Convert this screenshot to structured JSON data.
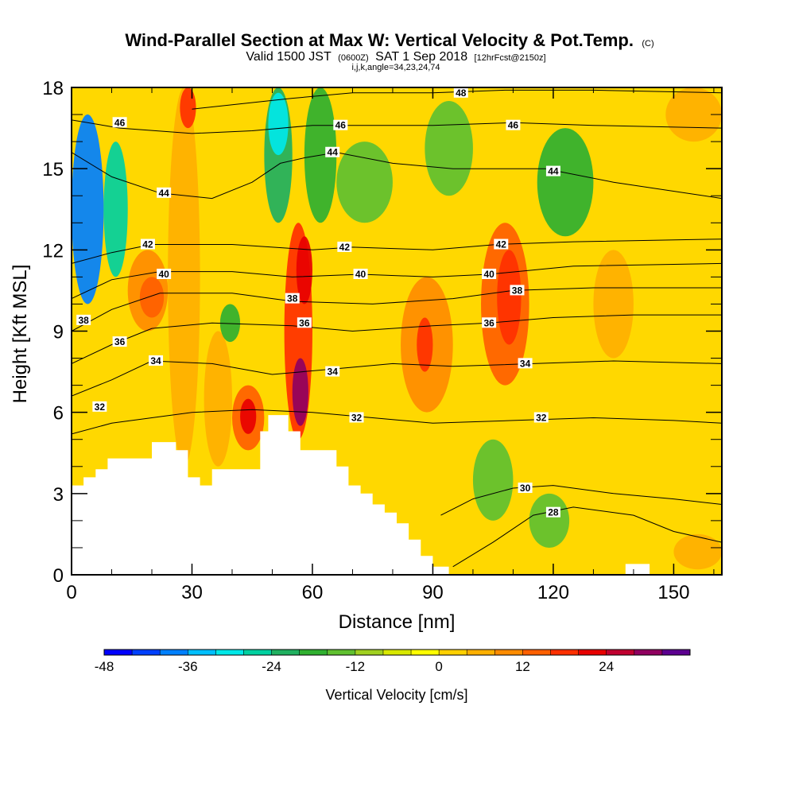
{
  "chart_data": {
    "type": "heatmap",
    "title": "Wind-Parallel Section at Max W: Vertical Velocity & Pot.Temp.",
    "title_suffix": "(C)",
    "subtitle_valid": "Valid 1500 JST",
    "subtitle_utc": "(0600Z)",
    "subtitle_date": "SAT 1 Sep 2018",
    "subtitle_fcst": "[12hrFcst@2150z]",
    "subtitle_indices": "i,j,k,angle=34,23,24,74",
    "xlabel": "Distance [nm]",
    "ylabel": "Height [Kft MSL]",
    "xlim": [
      0,
      162
    ],
    "ylim": [
      0,
      18
    ],
    "x_ticks": [
      0,
      30,
      60,
      90,
      120,
      150
    ],
    "x_tick_labels": [
      "0",
      "30",
      "60",
      "90",
      "120",
      "150"
    ],
    "y_ticks": [
      0,
      3,
      6,
      9,
      12,
      15,
      18
    ],
    "y_tick_labels": [
      "0",
      "3",
      "6",
      "9",
      "12",
      "15",
      "18"
    ],
    "colorbar": {
      "title": "Vertical Velocity [cm/s]",
      "min": -48,
      "step": 4,
      "colors": [
        "#0000ff",
        "#0040ff",
        "#0080ff",
        "#00bfff",
        "#00e8e8",
        "#00d0a0",
        "#20b060",
        "#30b030",
        "#60c030",
        "#a0d020",
        "#d8e800",
        "#ffff00",
        "#ffd000",
        "#ffb000",
        "#ff8c00",
        "#ff6000",
        "#ff3000",
        "#e80000",
        "#c00030",
        "#900060",
        "#5c0090"
      ],
      "tick_values": [
        -48,
        -36,
        -24,
        -12,
        0,
        12,
        24
      ],
      "tick_labels": [
        "-48",
        "-36",
        "-24",
        "-12",
        "0",
        "12",
        "24"
      ]
    },
    "vertical_velocity_cells": [
      {
        "x": [
          0,
          8
        ],
        "y": [
          10,
          17
        ],
        "v": -38
      },
      {
        "x": [
          8,
          14
        ],
        "y": [
          11,
          16
        ],
        "v": -26
      },
      {
        "x": [
          14,
          24
        ],
        "y": [
          9,
          12
        ],
        "v": 8
      },
      {
        "x": [
          17,
          23
        ],
        "y": [
          9.5,
          11
        ],
        "v": 14
      },
      {
        "x": [
          24,
          32
        ],
        "y": [
          4,
          18
        ],
        "v": 6
      },
      {
        "x": [
          27,
          31
        ],
        "y": [
          16.5,
          18
        ],
        "v": 16
      },
      {
        "x": [
          33,
          40
        ],
        "y": [
          4,
          9
        ],
        "v": 4
      },
      {
        "x": [
          37,
          42
        ],
        "y": [
          8.6,
          10
        ],
        "v": -20
      },
      {
        "x": [
          40,
          48
        ],
        "y": [
          4.6,
          7
        ],
        "v": 14
      },
      {
        "x": [
          42,
          46
        ],
        "y": [
          5.2,
          6.5
        ],
        "v": 20
      },
      {
        "x": [
          48,
          55
        ],
        "y": [
          13,
          18
        ],
        "v": -24
      },
      {
        "x": [
          49,
          54
        ],
        "y": [
          15.5,
          17.8
        ],
        "v": -30
      },
      {
        "x": [
          53,
          60
        ],
        "y": [
          5,
          13
        ],
        "v": 16
      },
      {
        "x": [
          55,
          59
        ],
        "y": [
          5.5,
          8
        ],
        "v": 28
      },
      {
        "x": [
          56,
          60
        ],
        "y": [
          10,
          12.5
        ],
        "v": 20
      },
      {
        "x": [
          58,
          66
        ],
        "y": [
          13,
          18
        ],
        "v": -20
      },
      {
        "x": [
          66,
          80
        ],
        "y": [
          13,
          16
        ],
        "v": -14
      },
      {
        "x": [
          82,
          95
        ],
        "y": [
          6,
          11
        ],
        "v": 10
      },
      {
        "x": [
          86,
          90
        ],
        "y": [
          7.5,
          9.5
        ],
        "v": 16
      },
      {
        "x": [
          88,
          100
        ],
        "y": [
          14,
          17.5
        ],
        "v": -14
      },
      {
        "x": [
          100,
          110
        ],
        "y": [
          2,
          5
        ],
        "v": -14
      },
      {
        "x": [
          102,
          114
        ],
        "y": [
          7,
          13
        ],
        "v": 12
      },
      {
        "x": [
          106,
          112
        ],
        "y": [
          8.5,
          12
        ],
        "v": 18
      },
      {
        "x": [
          114,
          124
        ],
        "y": [
          1,
          3
        ],
        "v": -14
      },
      {
        "x": [
          116,
          130
        ],
        "y": [
          12.5,
          16.5
        ],
        "v": -20
      },
      {
        "x": [
          130,
          140
        ],
        "y": [
          8,
          12
        ],
        "v": 6
      },
      {
        "x": [
          148,
          162
        ],
        "y": [
          16,
          18
        ],
        "v": 6
      },
      {
        "x": [
          150,
          162
        ],
        "y": [
          0.2,
          1.5
        ],
        "v": 6
      }
    ],
    "potential_temperature_contours": [
      {
        "value": 28,
        "label": "28",
        "points": [
          [
            95,
            0.3
          ],
          [
            105,
            1.2
          ],
          [
            115,
            2.2
          ],
          [
            125,
            2.5
          ],
          [
            140,
            2.2
          ],
          [
            150,
            1.6
          ],
          [
            162,
            1.2
          ]
        ]
      },
      {
        "value": 30,
        "label": "30",
        "points": [
          [
            92,
            2.2
          ],
          [
            100,
            2.8
          ],
          [
            110,
            3.2
          ],
          [
            120,
            3.3
          ],
          [
            135,
            3.0
          ],
          [
            150,
            2.8
          ],
          [
            162,
            2.6
          ]
        ]
      },
      {
        "value": 32,
        "label": "32",
        "points": [
          [
            0,
            5.2
          ],
          [
            10,
            5.6
          ],
          [
            20,
            5.8
          ],
          [
            30,
            6.0
          ],
          [
            45,
            6.1
          ],
          [
            60,
            6.0
          ],
          [
            75,
            5.8
          ],
          [
            90,
            5.6
          ],
          [
            110,
            5.7
          ],
          [
            130,
            5.8
          ],
          [
            150,
            5.7
          ],
          [
            162,
            5.6
          ]
        ]
      },
      {
        "value": 34,
        "label": "34",
        "points": [
          [
            0,
            6.6
          ],
          [
            10,
            7.2
          ],
          [
            20,
            7.9
          ],
          [
            35,
            7.8
          ],
          [
            50,
            7.4
          ],
          [
            65,
            7.6
          ],
          [
            80,
            7.8
          ],
          [
            95,
            7.7
          ],
          [
            115,
            7.8
          ],
          [
            135,
            7.9
          ],
          [
            162,
            7.8
          ]
        ]
      },
      {
        "value": 36,
        "label": "36",
        "points": [
          [
            0,
            7.8
          ],
          [
            10,
            8.5
          ],
          [
            20,
            9.1
          ],
          [
            35,
            9.3
          ],
          [
            55,
            9.2
          ],
          [
            70,
            9.0
          ],
          [
            90,
            9.2
          ],
          [
            104,
            9.3
          ],
          [
            120,
            9.5
          ],
          [
            140,
            9.6
          ],
          [
            162,
            9.6
          ]
        ]
      },
      {
        "value": 38,
        "label": "38",
        "points": [
          [
            0,
            9.0
          ],
          [
            10,
            9.8
          ],
          [
            22,
            10.4
          ],
          [
            40,
            10.4
          ],
          [
            55,
            10.1
          ],
          [
            75,
            10.0
          ],
          [
            95,
            10.2
          ],
          [
            110,
            10.5
          ],
          [
            130,
            10.6
          ],
          [
            162,
            10.6
          ]
        ]
      },
      {
        "value": 40,
        "label": "40",
        "points": [
          [
            0,
            10.2
          ],
          [
            10,
            10.9
          ],
          [
            22,
            11.2
          ],
          [
            40,
            11.2
          ],
          [
            55,
            11.0
          ],
          [
            72,
            11.1
          ],
          [
            90,
            11.0
          ],
          [
            104,
            11.1
          ],
          [
            125,
            11.4
          ],
          [
            162,
            11.5
          ]
        ]
      },
      {
        "value": 42,
        "label": "42",
        "points": [
          [
            0,
            11.5
          ],
          [
            10,
            11.9
          ],
          [
            20,
            12.2
          ],
          [
            40,
            12.2
          ],
          [
            60,
            12.0
          ],
          [
            70,
            12.1
          ],
          [
            90,
            12.0
          ],
          [
            106,
            12.2
          ],
          [
            125,
            12.3
          ],
          [
            162,
            12.4
          ]
        ]
      },
      {
        "value": 44,
        "label": "44",
        "points": [
          [
            0,
            15.6
          ],
          [
            10,
            14.7
          ],
          [
            22,
            14.1
          ],
          [
            35,
            13.9
          ],
          [
            45,
            14.5
          ],
          [
            52,
            15.2
          ],
          [
            58,
            15.4
          ],
          [
            66,
            15.6
          ],
          [
            80,
            15.2
          ],
          [
            95,
            15.0
          ],
          [
            118,
            15.0
          ],
          [
            135,
            14.5
          ],
          [
            162,
            13.9
          ]
        ]
      },
      {
        "value": 46,
        "label": "46",
        "points": [
          [
            0,
            16.8
          ],
          [
            12,
            16.5
          ],
          [
            30,
            16.3
          ],
          [
            45,
            16.4
          ],
          [
            60,
            16.6
          ],
          [
            70,
            16.6
          ],
          [
            90,
            16.6
          ],
          [
            110,
            16.7
          ],
          [
            130,
            16.6
          ],
          [
            162,
            16.5
          ]
        ]
      },
      {
        "value": 48,
        "label": "48",
        "points": [
          [
            30,
            17.2
          ],
          [
            55,
            17.6
          ],
          [
            70,
            17.8
          ],
          [
            90,
            17.8
          ],
          [
            108,
            17.9
          ],
          [
            130,
            17.9
          ],
          [
            162,
            17.8
          ]
        ]
      }
    ],
    "contour_label_positions": [
      {
        "label": "48",
        "x": 97,
        "y": 17.8
      },
      {
        "label": "46",
        "x": 12,
        "y": 16.7
      },
      {
        "label": "46",
        "x": 67,
        "y": 16.6
      },
      {
        "label": "46",
        "x": 110,
        "y": 16.6
      },
      {
        "label": "44",
        "x": 65,
        "y": 15.6
      },
      {
        "label": "44",
        "x": 120,
        "y": 14.9
      },
      {
        "label": "44",
        "x": 23,
        "y": 14.1
      },
      {
        "label": "42",
        "x": 19,
        "y": 12.2
      },
      {
        "label": "42",
        "x": 68,
        "y": 12.1
      },
      {
        "label": "42",
        "x": 107,
        "y": 12.2
      },
      {
        "label": "40",
        "x": 23,
        "y": 11.1
      },
      {
        "label": "40",
        "x": 72,
        "y": 11.1
      },
      {
        "label": "40",
        "x": 104,
        "y": 11.1
      },
      {
        "label": "38",
        "x": 55,
        "y": 10.2
      },
      {
        "label": "38",
        "x": 111,
        "y": 10.5
      },
      {
        "label": "38",
        "x": 3,
        "y": 9.4
      },
      {
        "label": "36",
        "x": 58,
        "y": 9.3
      },
      {
        "label": "36",
        "x": 104,
        "y": 9.3
      },
      {
        "label": "36",
        "x": 12,
        "y": 8.6
      },
      {
        "label": "34",
        "x": 21,
        "y": 7.9
      },
      {
        "label": "34",
        "x": 65,
        "y": 7.5
      },
      {
        "label": "34",
        "x": 113,
        "y": 7.8
      },
      {
        "label": "32",
        "x": 7,
        "y": 6.2
      },
      {
        "label": "32",
        "x": 71,
        "y": 5.8
      },
      {
        "label": "32",
        "x": 117,
        "y": 5.8
      },
      {
        "label": "30",
        "x": 113,
        "y": 3.2
      },
      {
        "label": "28",
        "x": 120,
        "y": 2.3
      }
    ],
    "terrain_profile": [
      [
        0,
        0
      ],
      [
        0,
        3.3
      ],
      [
        3,
        3.3
      ],
      [
        3,
        3.6
      ],
      [
        6,
        3.6
      ],
      [
        6,
        3.9
      ],
      [
        9,
        3.9
      ],
      [
        9,
        4.3
      ],
      [
        20,
        4.3
      ],
      [
        20,
        4.9
      ],
      [
        26,
        4.9
      ],
      [
        26,
        4.6
      ],
      [
        29,
        4.6
      ],
      [
        29,
        3.6
      ],
      [
        32,
        3.6
      ],
      [
        32,
        3.3
      ],
      [
        35,
        3.3
      ],
      [
        35,
        3.9
      ],
      [
        47,
        3.9
      ],
      [
        47,
        5.3
      ],
      [
        49,
        5.3
      ],
      [
        49,
        5.9
      ],
      [
        54,
        5.9
      ],
      [
        54,
        5.3
      ],
      [
        57,
        5.3
      ],
      [
        57,
        4.6
      ],
      [
        66,
        4.6
      ],
      [
        66,
        4.0
      ],
      [
        69,
        4.0
      ],
      [
        69,
        3.3
      ],
      [
        72,
        3.3
      ],
      [
        72,
        3.0
      ],
      [
        75,
        3.0
      ],
      [
        75,
        2.6
      ],
      [
        78,
        2.6
      ],
      [
        78,
        2.3
      ],
      [
        81,
        2.3
      ],
      [
        81,
        1.9
      ],
      [
        84,
        1.9
      ],
      [
        84,
        1.3
      ],
      [
        87,
        1.3
      ],
      [
        87,
        0.7
      ],
      [
        90,
        0.7
      ],
      [
        90,
        0.3
      ],
      [
        94,
        0.3
      ],
      [
        94,
        0
      ],
      [
        162,
        0
      ]
    ],
    "terrain_secondary": [
      [
        138,
        0
      ],
      [
        138,
        0.4
      ],
      [
        144,
        0.4
      ],
      [
        144,
        0
      ],
      [
        162,
        0
      ]
    ]
  }
}
